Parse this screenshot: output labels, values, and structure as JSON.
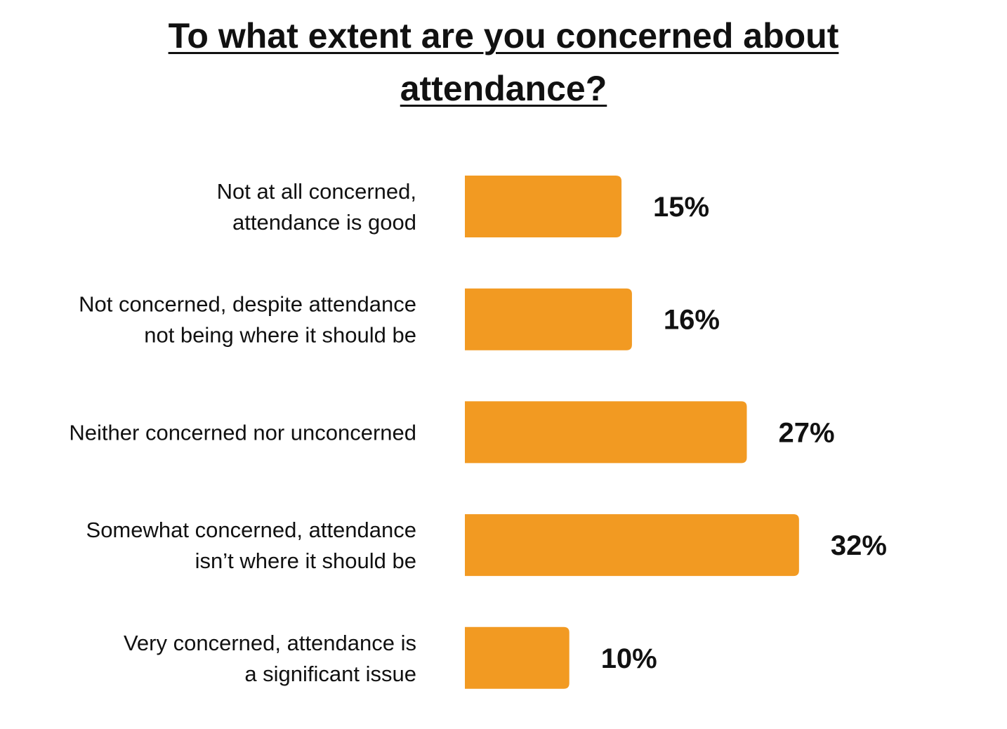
{
  "chart_data": {
    "type": "bar",
    "orientation": "horizontal",
    "title_lines": [
      "To what extent are you concerned about",
      "attendance?"
    ],
    "categories": [
      [
        "Not at all concerned,",
        "attendance is good"
      ],
      [
        "Not concerned, despite attendance",
        "not being where it should be"
      ],
      [
        "Neither concerned nor unconcerned"
      ],
      [
        "Somewhat concerned, attendance",
        "isn’t where it should be"
      ],
      [
        "Very concerned, attendance is",
        "a significant issue"
      ]
    ],
    "values": [
      15,
      16,
      27,
      32,
      10
    ],
    "value_labels": [
      "15%",
      "16%",
      "27%",
      "32%",
      "10%"
    ],
    "unit": "%",
    "grid": false,
    "legend": "none",
    "bar_color": "#F29A22"
  }
}
